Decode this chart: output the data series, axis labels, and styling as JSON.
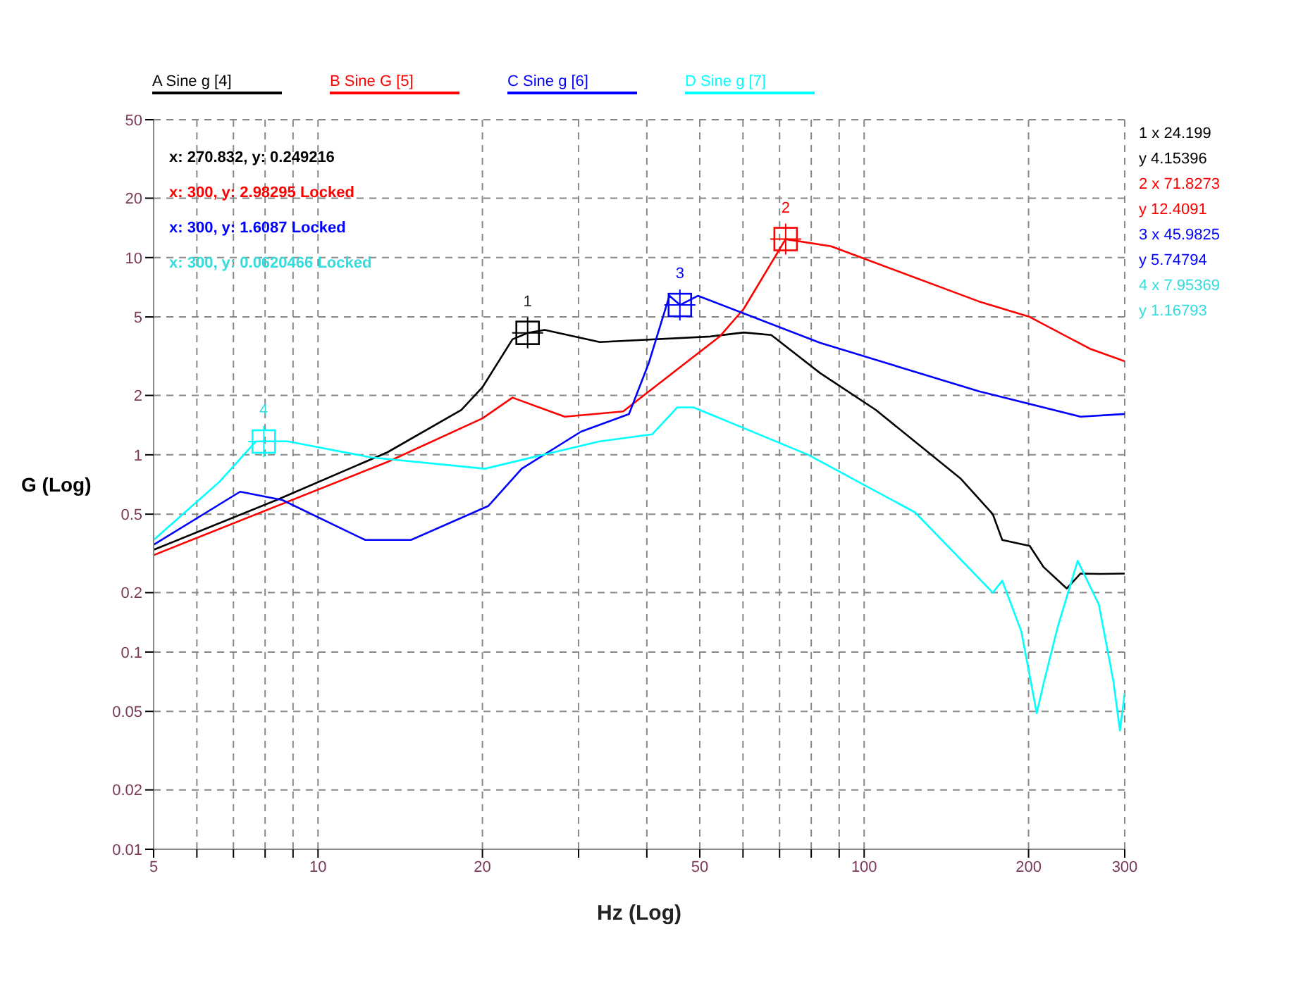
{
  "chart_data": {
    "type": "line",
    "xlabel": "Hz (Log)",
    "ylabel": "G (Log)",
    "log": "xy",
    "grid": true,
    "legend": "top",
    "marker": "none",
    "line_style": "solid",
    "xlim": [
      5,
      300
    ],
    "xticks": [
      5,
      {
        "value": 6,
        "label": null
      },
      {
        "value": 7,
        "label": null
      },
      {
        "value": 8,
        "label": null
      },
      {
        "value": 9,
        "label": null
      },
      10,
      20,
      {
        "value": 30,
        "label": null
      },
      {
        "value": 40,
        "label": null
      },
      50,
      {
        "value": 60,
        "label": null
      },
      {
        "value": 70,
        "label": null
      },
      {
        "value": 80,
        "label": null
      },
      {
        "value": 90,
        "label": null
      },
      100,
      200,
      300
    ],
    "ylim": [
      0.01,
      50
    ],
    "yticks": [
      0.01,
      0.02,
      0.05,
      0.1,
      0.2,
      0.5,
      1,
      2,
      5,
      10,
      20,
      50
    ],
    "series": [
      {
        "name": "A Sine g [4]",
        "color": "#000000",
        "x": [
          5,
          8.4,
          13.4,
          18.3,
          20,
          22.7,
          24.2,
          26,
          32.8,
          52.3,
          60.2,
          67.6,
          83,
          105,
          150,
          172,
          179,
          201,
          213,
          235,
          249,
          270.8,
          300
        ],
        "values": [
          0.33,
          0.59,
          1.03,
          1.69,
          2.2,
          3.85,
          4.15,
          4.3,
          3.73,
          3.98,
          4.17,
          4.05,
          2.6,
          1.69,
          0.76,
          0.5,
          0.37,
          0.345,
          0.27,
          0.21,
          0.25,
          0.249,
          0.25
        ]
      },
      {
        "name": "B Sine G [5]",
        "color": "#ff0000",
        "x": [
          5,
          13.4,
          20,
          22.7,
          28.3,
          36.2,
          54.5,
          60.2,
          71.8,
          87,
          162,
          201,
          259,
          300
        ],
        "values": [
          0.31,
          0.92,
          1.53,
          1.95,
          1.56,
          1.66,
          4.0,
          5.5,
          12.4,
          11.4,
          6.0,
          5.0,
          3.45,
          2.98
        ]
      },
      {
        "name": "C Sine g [6]",
        "color": "#0000ff",
        "x": [
          5,
          7.2,
          8.6,
          12.2,
          14.8,
          20.5,
          23.6,
          30.3,
          37.1,
          40.3,
          44,
          46,
          49.6,
          83,
          162,
          249,
          300
        ],
        "values": [
          0.35,
          0.65,
          0.59,
          0.37,
          0.37,
          0.55,
          0.85,
          1.31,
          1.61,
          2.9,
          6.4,
          5.75,
          6.4,
          3.7,
          2.1,
          1.56,
          1.61
        ]
      },
      {
        "name": "D Sine g [7]",
        "color": "#00ffff",
        "x": [
          5,
          6.6,
          7.7,
          8,
          8.8,
          12.5,
          20.2,
          27,
          32.8,
          40.9,
          45.5,
          48.7,
          79,
          124,
          172,
          179,
          194,
          207,
          213,
          226,
          246,
          269,
          286,
          294,
          300
        ],
        "values": [
          0.37,
          0.73,
          1.17,
          1.17,
          1.17,
          0.97,
          0.85,
          1.03,
          1.17,
          1.27,
          1.74,
          1.74,
          1.0,
          0.51,
          0.2,
          0.23,
          0.127,
          0.049,
          0.069,
          0.133,
          0.29,
          0.174,
          0.071,
          0.04,
          0.062
        ]
      }
    ],
    "annotations": [
      "x: 270.832, y: 0.249216",
      "x: 300, y: 2.98295 Locked",
      "x: 300, y: 1.6087 Locked",
      "x: 300, y: 0.0620466 Locked",
      "1 x 24.199",
      "y 4.15396",
      "2 x 71.8273",
      "y 12.4091",
      "3 x 45.9825",
      "y 5.74794",
      "4 x 7.95369",
      "y 1.16793",
      {
        "text": "1",
        "x": 24.199,
        "y": 4.15396
      },
      {
        "text": "2",
        "x": 71.8273,
        "y": 12.4091
      },
      {
        "text": "3",
        "x": 45.9825,
        "y": 5.74794
      },
      {
        "text": "4",
        "x": 7.95369,
        "y": 1.16793
      }
    ]
  }
}
